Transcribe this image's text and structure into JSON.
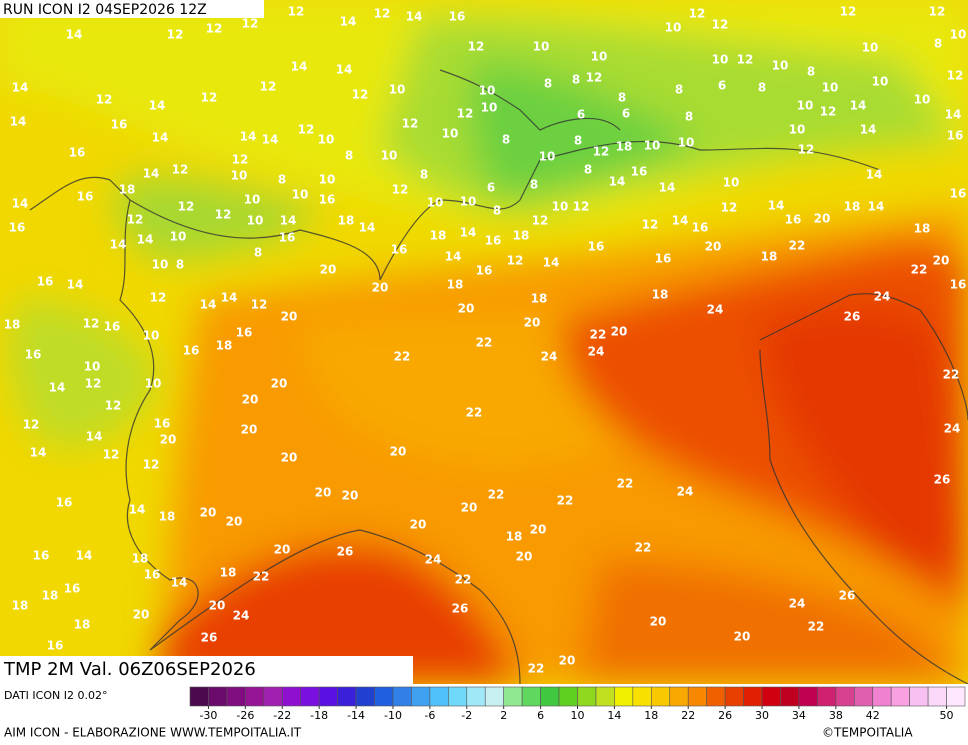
{
  "header": {
    "run": "RUN ICON I2 04SEP2026 12Z",
    "field": "TMP 2M Val. 06Z06SEP2026",
    "source": "DATI ICON I2 0.02°",
    "credit": "AIM ICON - ELABORAZIONE WWW.TEMPOITALIA.IT",
    "brand": "©TEMPOITALIA"
  },
  "map": {
    "labels": [
      12,
      14,
      12,
      14,
      16,
      12,
      12,
      12,
      12,
      14,
      12,
      12,
      12,
      12,
      10,
      10,
      10,
      10,
      8,
      10,
      14,
      14,
      10,
      8,
      8,
      12,
      8,
      8,
      10,
      12,
      10,
      8,
      10,
      10,
      10,
      12,
      14,
      12,
      14,
      12,
      12,
      12,
      10,
      12,
      10,
      12,
      10,
      6,
      6,
      8,
      6,
      8,
      10,
      12,
      14,
      14,
      14,
      14,
      16,
      14,
      14,
      14,
      12,
      10,
      8,
      10,
      8,
      10,
      8,
      12,
      18,
      10,
      10,
      10,
      16,
      16,
      12,
      12,
      10,
      14,
      8,
      10,
      12,
      8,
      6,
      8,
      8,
      14,
      16,
      14,
      10,
      12,
      14,
      16,
      14,
      16,
      16,
      18,
      12,
      12,
      10,
      10,
      16,
      10,
      10,
      8,
      12,
      10,
      12,
      14,
      12,
      14,
      16,
      20,
      18,
      14,
      18,
      12,
      14,
      14,
      10,
      10,
      14,
      18,
      14,
      16,
      18,
      14,
      16,
      18,
      16,
      12,
      16,
      20,
      22,
      16,
      14,
      10,
      8,
      8,
      16,
      20,
      20,
      14,
      16,
      12,
      14,
      16,
      18,
      22,
      20,
      16,
      18,
      12,
      12,
      16,
      14,
      14,
      12,
      20,
      18,
      20,
      18,
      18,
      24,
      24,
      10,
      16,
      18,
      16,
      20,
      22,
      22,
      20,
      26,
      16,
      10,
      12,
      10,
      22,
      24,
      24,
      14,
      20,
      22,
      12,
      20,
      22,
      12,
      14,
      16,
      20,
      20,
      24,
      14,
      12,
      12,
      20,
      20,
      26,
      16,
      20,
      20,
      22,
      22,
      22,
      24,
      14,
      18,
      20,
      20,
      20,
      20,
      18,
      20,
      16,
      14,
      18,
      16,
      14,
      20,
      26,
      24,
      20,
      22,
      18,
      22,
      22,
      18,
      18,
      16,
      18,
      20,
      24,
      26,
      24,
      26,
      20,
      26,
      20,
      22,
      20,
      16,
      22,
      20
    ]
  },
  "colorbar": {
    "lim": [
      -32,
      52
    ],
    "ticks": [
      -30,
      -26,
      -22,
      -18,
      -14,
      -10,
      -6,
      -2,
      2,
      6,
      10,
      14,
      18,
      22,
      26,
      30,
      34,
      38,
      42,
      50
    ],
    "colors": [
      "#4b0a4b",
      "#6a0a6a",
      "#800d80",
      "#951595",
      "#a020b0",
      "#9010d0",
      "#7a10e0",
      "#5a10e0",
      "#3a20d8",
      "#2040d0",
      "#2060e0",
      "#3080e8",
      "#40a0f0",
      "#50c0f8",
      "#70d8f8",
      "#a0e8f8",
      "#c8f0f0",
      "#90e890",
      "#60d860",
      "#40c840",
      "#60d020",
      "#90d820",
      "#c0e020",
      "#f0f000",
      "#f8e000",
      "#f8c800",
      "#f8a800",
      "#f88800",
      "#f06000",
      "#e84000",
      "#e02000",
      "#d00010",
      "#c00020",
      "#c00050",
      "#d02070",
      "#d84090",
      "#e060b0",
      "#f080d0",
      "#f8a0e0",
      "#f8c0f0",
      "#fcd8f8",
      "#ffe8ff"
    ]
  }
}
